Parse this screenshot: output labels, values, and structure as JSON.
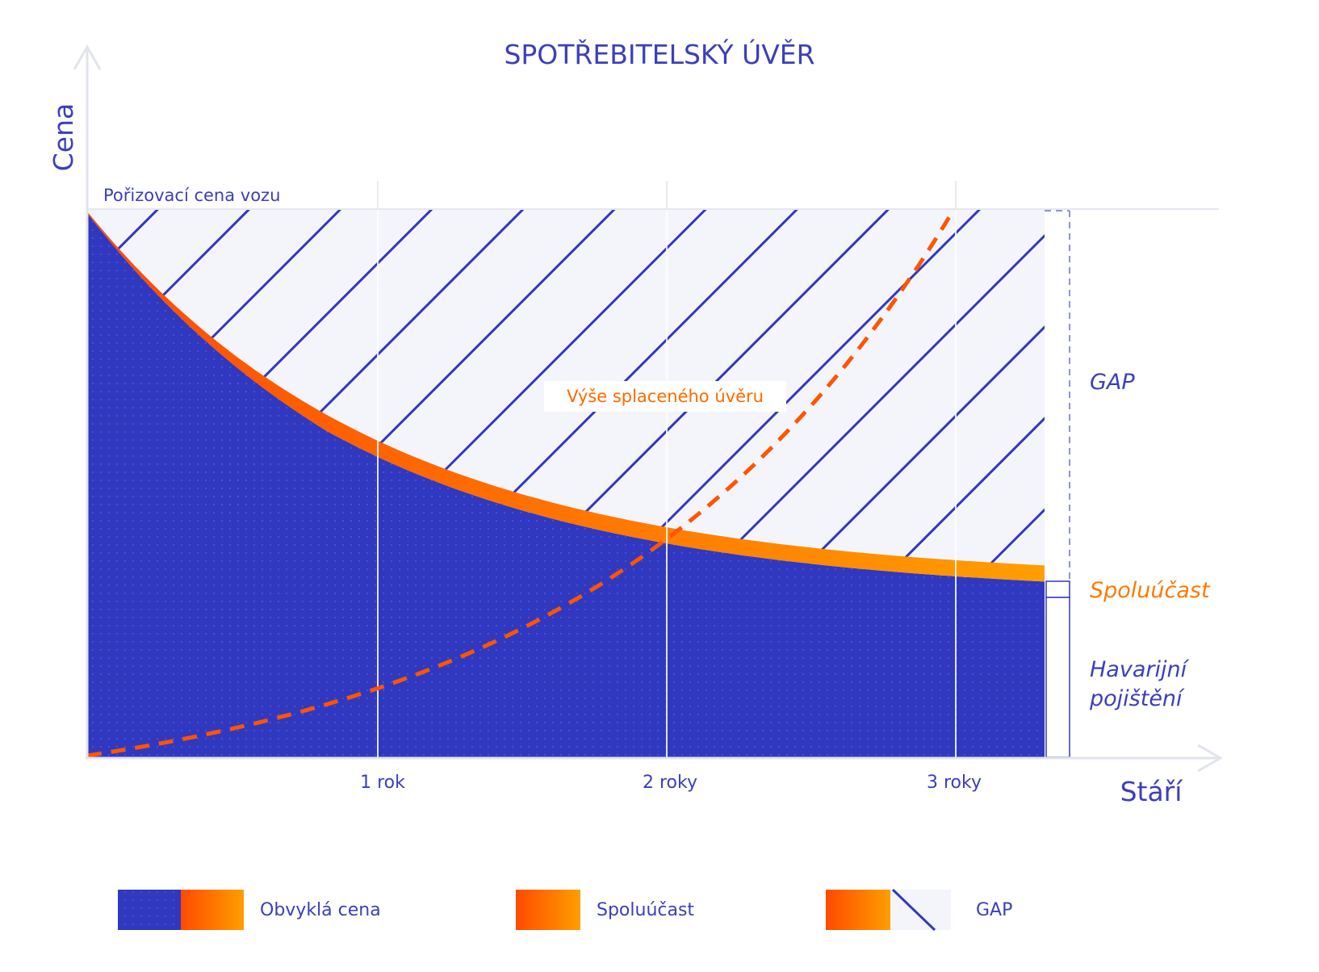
{
  "title": "SPOTŘEBITELSKÝ ÚVĚR",
  "axes": {
    "y_label": "Cena",
    "x_label": "Stáří",
    "top_line_label": "Pořizovací cena vozu",
    "ticks": [
      "1 rok",
      "2 roky",
      "3 roky"
    ]
  },
  "annotations": {
    "loan_curve_label": "Výše splaceného úvěru",
    "gap_label": "GAP",
    "deductible_label": "Spoluúčast",
    "insurance_label_line1": "Havarijní",
    "insurance_label_line2": "pojištění"
  },
  "legend": {
    "items": [
      {
        "label": "Obvyklá cena"
      },
      {
        "label": "Spoluúčast"
      },
      {
        "label": "GAP"
      }
    ]
  },
  "colors": {
    "blue": "#3138c0",
    "navy_text": "#3b3fbd",
    "orange_start": "#ff4a00",
    "orange_end": "#ff9e00",
    "gap_bg": "#f4f5fb",
    "hatch": "#3138c0",
    "loan_dash": "#ff5500"
  }
}
